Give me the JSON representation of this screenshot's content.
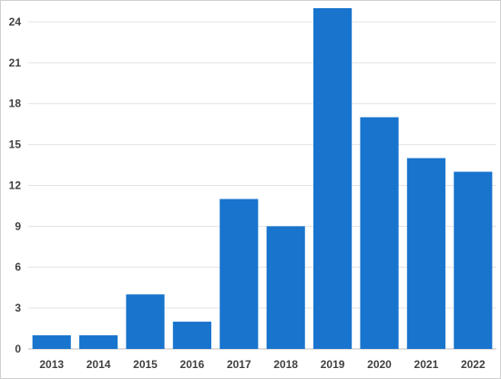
{
  "chart_data": {
    "type": "bar",
    "title": "",
    "xlabel": "",
    "ylabel": "",
    "categories": [
      "2013",
      "2014",
      "2015",
      "2016",
      "2017",
      "2018",
      "2019",
      "2020",
      "2021",
      "2022"
    ],
    "values": [
      1,
      1,
      4,
      2,
      11,
      9,
      25,
      17,
      14,
      13
    ],
    "ylim": [
      0,
      25
    ],
    "yticks": [
      "0",
      "3",
      "6",
      "9",
      "12",
      "15",
      "18",
      "21",
      "24"
    ],
    "grid": true,
    "legend": "none",
    "colors": {
      "bar": "#1874CD",
      "grid": "#e3e3e3",
      "text": "#404040"
    }
  }
}
